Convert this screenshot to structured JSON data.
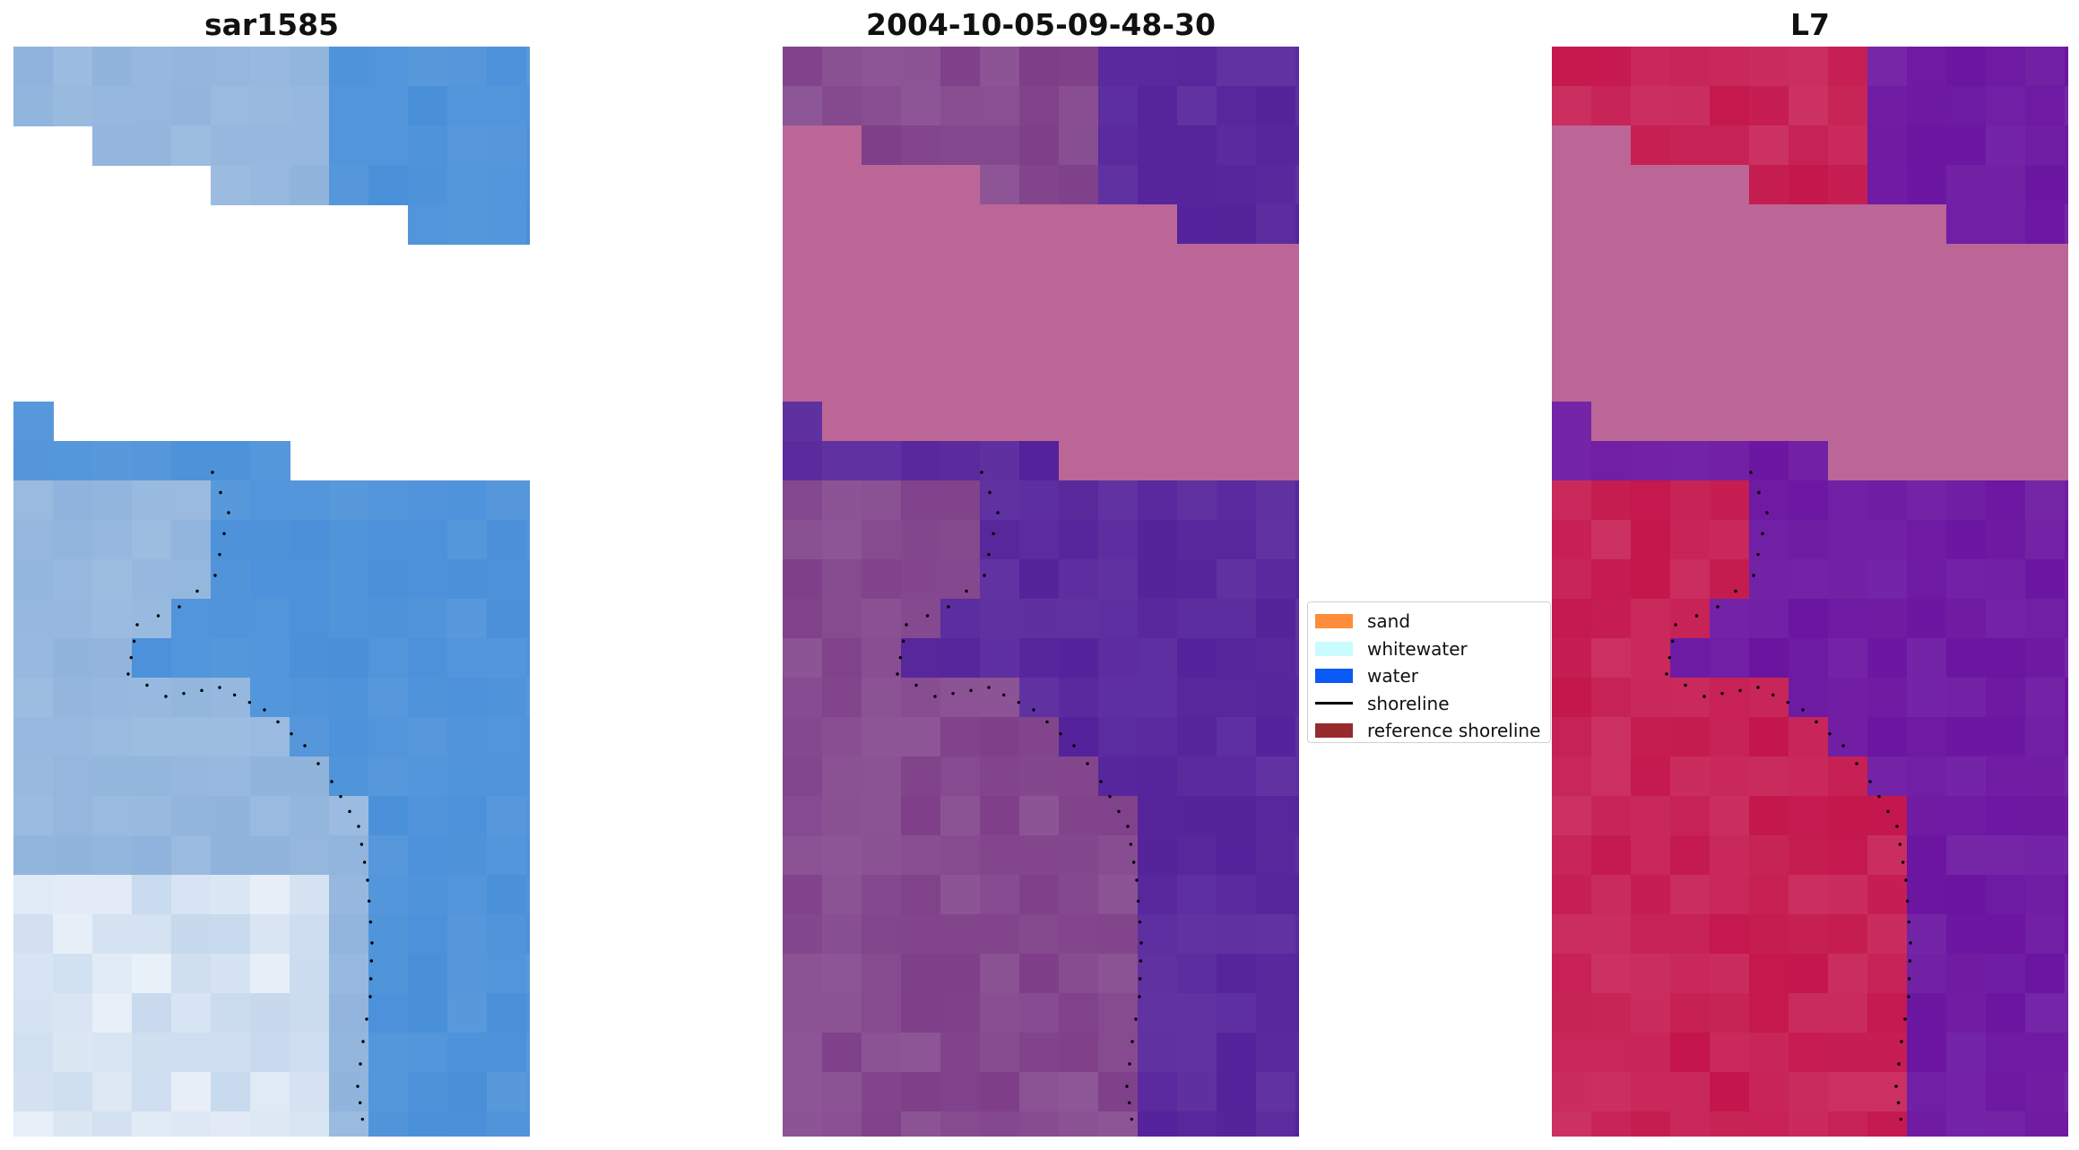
{
  "panels": [
    {
      "title": "sar1585",
      "palette": "rgb",
      "colors": {
        "water": "#4a90d9",
        "whitewater": "#f2f6fb",
        "land": "#8fb3dc",
        "cloud": "#ffffff"
      }
    },
    {
      "title": "2004-10-05-09-48-30",
      "palette": "classified",
      "colors": {
        "water": "#54229a",
        "land": "#7e3f88",
        "cloud": "#bb6696"
      }
    },
    {
      "title": "L7",
      "palette": "index",
      "colors": {
        "water": "#6a14a0",
        "land": "#c4164c",
        "cloud": "#bb6696"
      }
    }
  ],
  "legend": {
    "placement": "center",
    "items": [
      {
        "label": "sand",
        "color": "#ff8c3a",
        "kind": "patch"
      },
      {
        "label": "whitewater",
        "color": "#c8fcff",
        "kind": "patch"
      },
      {
        "label": "water",
        "color": "#0a5af5",
        "kind": "patch"
      },
      {
        "label": "shoreline",
        "color": "#000000",
        "kind": "line"
      },
      {
        "label": "reference shoreline",
        "color": "#962a2f",
        "kind": "patch"
      }
    ]
  }
}
